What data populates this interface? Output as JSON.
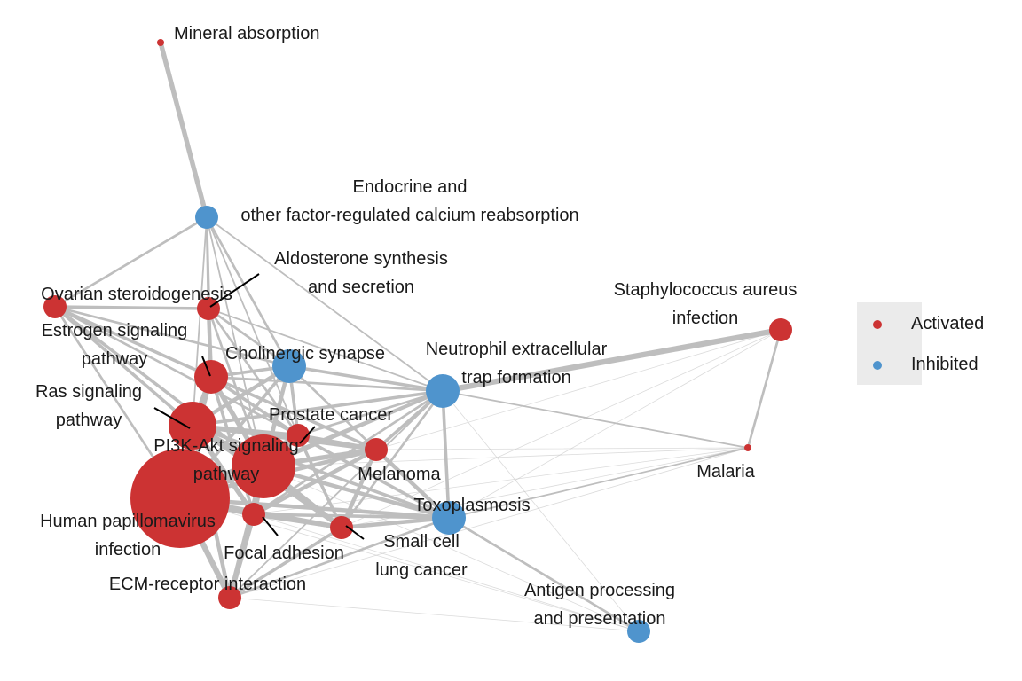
{
  "colors": {
    "activated": "#cc3333",
    "inhibited": "#4f94cd",
    "edge": "#bebebe",
    "legend_bg": "#ebebeb"
  },
  "legend": {
    "items": [
      {
        "label": "Activated",
        "status": "activated"
      },
      {
        "label": "Inhibited",
        "status": "inhibited"
      }
    ]
  },
  "nodes": [
    {
      "id": "mineral",
      "label": [
        "Mineral absorption"
      ],
      "status": "activated",
      "size": "tiny"
    },
    {
      "id": "endocrine",
      "label": [
        "Endocrine and",
        "other factor-regulated calcium reabsorption"
      ],
      "status": "inhibited",
      "size": "small"
    },
    {
      "id": "aldosterone",
      "label": [
        "Aldosterone synthesis",
        "and secretion"
      ],
      "status": "activated",
      "size": "small"
    },
    {
      "id": "ovarian",
      "label": [
        "Ovarian steroidogenesis"
      ],
      "status": "activated",
      "size": "small"
    },
    {
      "id": "estrogen",
      "label": [
        "Estrogen signaling",
        "pathway"
      ],
      "status": "activated",
      "size": "medium"
    },
    {
      "id": "cholinergic",
      "label": [
        "Cholinergic synapse"
      ],
      "status": "inhibited",
      "size": "medium"
    },
    {
      "id": "neutrophil",
      "label": [
        "Neutrophil extracellular",
        "trap formation"
      ],
      "status": "inhibited",
      "size": "medium"
    },
    {
      "id": "staph",
      "label": [
        "Staphylococcus aureus",
        "infection"
      ],
      "status": "activated",
      "size": "small"
    },
    {
      "id": "ras",
      "label": [
        "Ras signaling",
        "pathway"
      ],
      "status": "activated",
      "size": "large"
    },
    {
      "id": "prostate",
      "label": [
        "Prostate cancer"
      ],
      "status": "activated",
      "size": "small"
    },
    {
      "id": "pi3k",
      "label": [
        "PI3K-Akt signaling",
        "pathway"
      ],
      "status": "activated",
      "size": "xlarge"
    },
    {
      "id": "melanoma",
      "label": [
        "Melanoma"
      ],
      "status": "activated",
      "size": "small"
    },
    {
      "id": "malaria",
      "label": [
        "Malaria"
      ],
      "status": "activated",
      "size": "tiny"
    },
    {
      "id": "hpv",
      "label": [
        "Human papillomavirus",
        "infection"
      ],
      "status": "activated",
      "size": "xxlarge"
    },
    {
      "id": "toxo",
      "label": [
        "Toxoplasmosis"
      ],
      "status": "inhibited",
      "size": "medium"
    },
    {
      "id": "focal",
      "label": [
        "Focal adhesion"
      ],
      "status": "activated",
      "size": "small"
    },
    {
      "id": "smallcell",
      "label": [
        "Small cell",
        "lung cancer"
      ],
      "status": "activated",
      "size": "small"
    },
    {
      "id": "ecm",
      "label": [
        "ECM-receptor interaction"
      ],
      "status": "activated",
      "size": "small"
    },
    {
      "id": "antigen",
      "label": [
        "Antigen processing",
        "and presentation"
      ],
      "status": "inhibited",
      "size": "small"
    }
  ]
}
